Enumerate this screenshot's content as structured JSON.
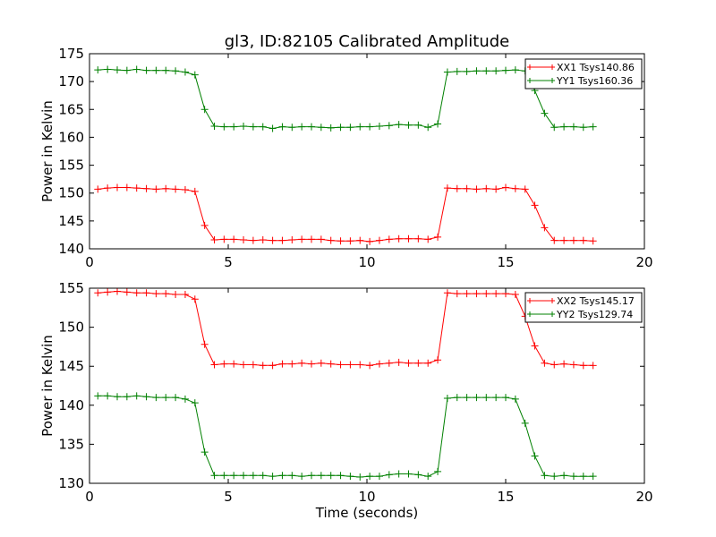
{
  "chart_data": [
    {
      "type": "line",
      "title": "gl3, ID:82105 Calibrated Amplitude",
      "xlabel": "",
      "ylabel": "Power in Kelvin",
      "xlim": [
        0,
        20
      ],
      "ylim": [
        140,
        175
      ],
      "xticks": [
        0,
        5,
        10,
        15,
        20
      ],
      "yticks": [
        140,
        145,
        150,
        155,
        160,
        165,
        170,
        175
      ],
      "grid": false,
      "legend": "top-right",
      "x": [
        0.3,
        0.65,
        1.0,
        1.35,
        1.7,
        2.05,
        2.4,
        2.75,
        3.1,
        3.45,
        3.8,
        4.15,
        4.5,
        4.85,
        5.2,
        5.55,
        5.9,
        6.25,
        6.6,
        6.95,
        7.3,
        7.65,
        8.0,
        8.35,
        8.7,
        9.05,
        9.4,
        9.75,
        10.1,
        10.45,
        10.8,
        11.15,
        11.5,
        11.85,
        12.2,
        12.55,
        12.9,
        13.25,
        13.6,
        13.95,
        14.3,
        14.65,
        15.0,
        15.35,
        15.7,
        16.05,
        16.4,
        16.75,
        17.1,
        17.45,
        17.8,
        18.15
      ],
      "series": [
        {
          "name": "XX1 Tsys140.86",
          "color": "#ff0000",
          "values": [
            150.7,
            150.9,
            151.0,
            151.0,
            150.9,
            150.8,
            150.7,
            150.8,
            150.7,
            150.6,
            150.3,
            144.2,
            141.6,
            141.7,
            141.7,
            141.6,
            141.5,
            141.6,
            141.5,
            141.5,
            141.6,
            141.7,
            141.7,
            141.7,
            141.5,
            141.4,
            141.4,
            141.5,
            141.3,
            141.5,
            141.7,
            141.8,
            141.8,
            141.8,
            141.7,
            142.1,
            150.9,
            150.8,
            150.8,
            150.7,
            150.8,
            150.7,
            151.0,
            150.8,
            150.7,
            147.8,
            143.8,
            141.5,
            141.5,
            141.5,
            141.5,
            141.4
          ]
        },
        {
          "name": "YY1 Tsys160.36",
          "color": "#008000",
          "values": [
            172.1,
            172.2,
            172.1,
            172.0,
            172.2,
            172.0,
            172.0,
            172.0,
            171.9,
            171.7,
            171.2,
            165.0,
            162.0,
            161.9,
            161.9,
            162.0,
            161.9,
            161.9,
            161.6,
            161.9,
            161.8,
            161.9,
            161.9,
            161.8,
            161.7,
            161.8,
            161.8,
            161.9,
            161.9,
            162.0,
            162.1,
            162.3,
            162.2,
            162.2,
            161.8,
            162.4,
            171.7,
            171.8,
            171.8,
            171.9,
            171.9,
            171.9,
            172.0,
            172.1,
            171.9,
            168.4,
            164.3,
            161.8,
            161.9,
            161.9,
            161.8,
            161.9
          ]
        }
      ]
    },
    {
      "type": "line",
      "title": "",
      "xlabel": "Time (seconds)",
      "ylabel": "Power in Kelvin",
      "xlim": [
        0,
        20
      ],
      "ylim": [
        130,
        155
      ],
      "xticks": [
        0,
        5,
        10,
        15,
        20
      ],
      "yticks": [
        130,
        135,
        140,
        145,
        150,
        155
      ],
      "grid": false,
      "legend": "top-right",
      "x": [
        0.3,
        0.65,
        1.0,
        1.35,
        1.7,
        2.05,
        2.4,
        2.75,
        3.1,
        3.45,
        3.8,
        4.15,
        4.5,
        4.85,
        5.2,
        5.55,
        5.9,
        6.25,
        6.6,
        6.95,
        7.3,
        7.65,
        8.0,
        8.35,
        8.7,
        9.05,
        9.4,
        9.75,
        10.1,
        10.45,
        10.8,
        11.15,
        11.5,
        11.85,
        12.2,
        12.55,
        12.9,
        13.25,
        13.6,
        13.95,
        14.3,
        14.65,
        15.0,
        15.35,
        15.7,
        16.05,
        16.4,
        16.75,
        17.1,
        17.45,
        17.8,
        18.15
      ],
      "series": [
        {
          "name": "XX2 Tsys145.17",
          "color": "#ff0000",
          "values": [
            154.4,
            154.5,
            154.6,
            154.5,
            154.4,
            154.4,
            154.3,
            154.3,
            154.2,
            154.2,
            153.6,
            147.8,
            145.2,
            145.3,
            145.3,
            145.2,
            145.2,
            145.1,
            145.1,
            145.3,
            145.3,
            145.4,
            145.3,
            145.4,
            145.3,
            145.2,
            145.2,
            145.2,
            145.1,
            145.3,
            145.4,
            145.5,
            145.4,
            145.4,
            145.4,
            145.8,
            154.4,
            154.3,
            154.3,
            154.3,
            154.3,
            154.3,
            154.3,
            154.2,
            151.4,
            147.6,
            145.4,
            145.2,
            145.3,
            145.2,
            145.1,
            145.1
          ]
        },
        {
          "name": "YY2 Tsys129.74",
          "color": "#008000",
          "values": [
            141.2,
            141.2,
            141.1,
            141.1,
            141.2,
            141.1,
            141.0,
            141.0,
            141.0,
            140.8,
            140.3,
            134.0,
            131.0,
            131.0,
            131.0,
            131.0,
            131.0,
            131.0,
            130.9,
            131.0,
            131.0,
            130.9,
            131.0,
            131.0,
            131.0,
            131.0,
            130.9,
            130.8,
            130.9,
            130.9,
            131.1,
            131.2,
            131.2,
            131.1,
            130.9,
            131.5,
            140.9,
            141.0,
            141.0,
            141.0,
            141.0,
            141.0,
            141.0,
            140.8,
            137.7,
            133.5,
            131.0,
            130.9,
            131.0,
            130.9,
            130.9,
            130.9
          ]
        }
      ]
    }
  ]
}
